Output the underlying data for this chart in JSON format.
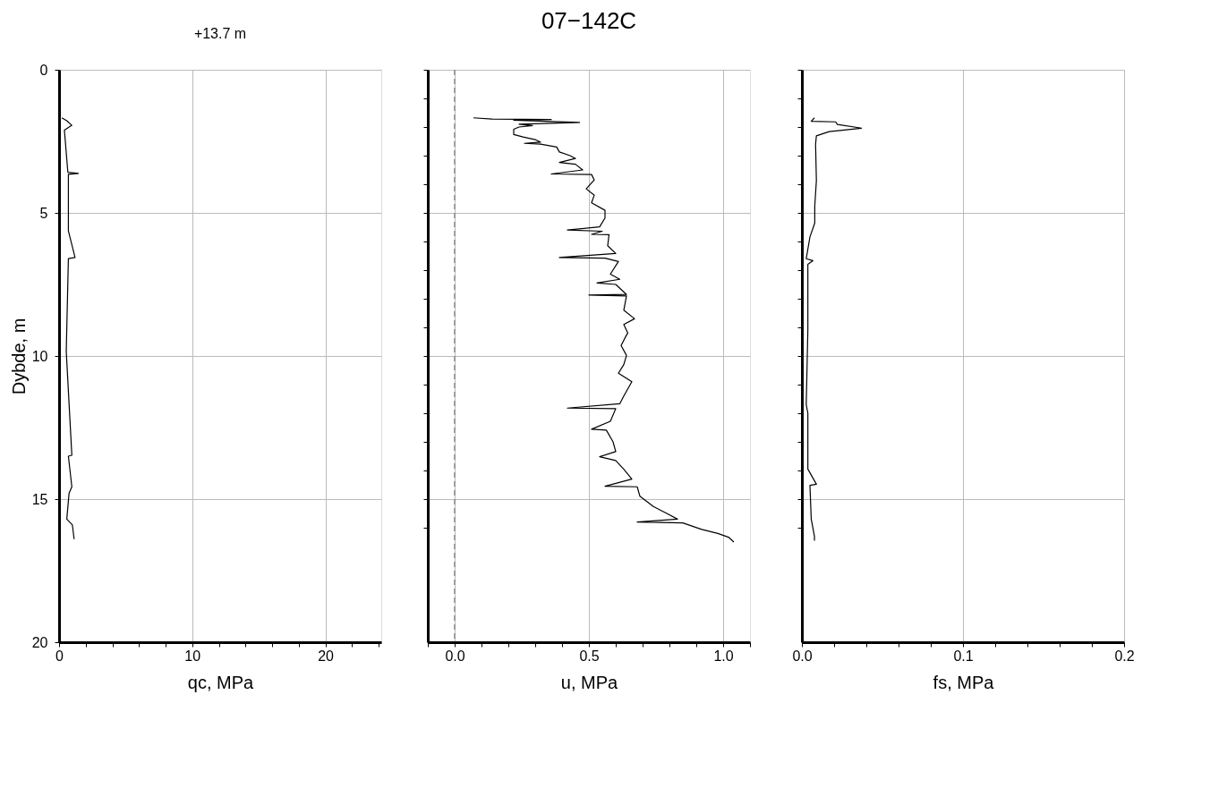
{
  "chart_data": [
    {
      "type": "line",
      "xlabel": "qc, MPa",
      "ylabel": "Dybde, m",
      "grid": true,
      "line_style": "solid",
      "annotations": [
        "+13.7 m"
      ],
      "xlim": [
        0,
        24.2
      ],
      "xticks": [
        0,
        {
          "value": 2,
          "label": null
        },
        {
          "value": 4,
          "label": null
        },
        {
          "value": 6,
          "label": null
        },
        {
          "value": 8,
          "label": null
        },
        10,
        {
          "value": 12,
          "label": null
        },
        {
          "value": 14,
          "label": null
        },
        {
          "value": 16,
          "label": null
        },
        {
          "value": 18,
          "label": null
        },
        20,
        {
          "value": 22,
          "label": null
        },
        {
          "value": 24,
          "label": null
        }
      ],
      "ylim": [
        20,
        0
      ],
      "yticks": [
        0,
        5,
        10,
        15,
        20
      ],
      "series": [
        {
          "color": "#000000",
          "x": [
            0.21,
            0.58,
            0.96,
            0.4,
            0.66,
            1.45,
            0.7,
            0.7,
            1.2,
            0.7,
            0.54,
            0.96,
            0.7,
            0.96,
            0.75,
            0.58,
            1.0,
            1.13
          ],
          "values": [
            1.68,
            1.78,
            1.94,
            2.11,
            3.58,
            3.62,
            3.65,
            5.63,
            6.56,
            6.6,
            9.84,
            13.47,
            13.5,
            14.57,
            14.8,
            15.7,
            15.9,
            16.4
          ]
        }
      ]
    },
    {
      "type": "line",
      "title": "07−142C",
      "xlabel": "u, MPa",
      "grid": true,
      "tick_labels": "x",
      "line_style": "solid",
      "xlim": [
        -0.1,
        1.1
      ],
      "xticks": [
        {
          "value": -0.1,
          "label": null
        },
        {
          "value": 0,
          "label": "0.0"
        },
        {
          "value": 0.1,
          "label": null
        },
        {
          "value": 0.2,
          "label": null
        },
        {
          "value": 0.3,
          "label": null
        },
        {
          "value": 0.4,
          "label": null
        },
        0.5,
        {
          "value": 0.6,
          "label": null
        },
        {
          "value": 0.7,
          "label": null
        },
        {
          "value": 0.8,
          "label": null
        },
        {
          "value": 0.9,
          "label": null
        },
        {
          "value": 1.0,
          "label": "1.0"
        },
        {
          "value": 1.1,
          "label": null
        }
      ],
      "ylim": [
        20,
        0
      ],
      "yticks": [
        0,
        {
          "value": 1,
          "label": null
        },
        {
          "value": 2,
          "label": null
        },
        {
          "value": 3,
          "label": null
        },
        {
          "value": 4,
          "label": null
        },
        5,
        {
          "value": 6,
          "label": null
        },
        {
          "value": 7,
          "label": null
        },
        {
          "value": 8,
          "label": null
        },
        {
          "value": 9,
          "label": null
        },
        10,
        {
          "value": 11,
          "label": null
        },
        {
          "value": 12,
          "label": null
        },
        {
          "value": 13,
          "label": null
        },
        {
          "value": 14,
          "label": null
        },
        15,
        {
          "value": 16,
          "label": null
        }
      ],
      "ref_lines": [
        {
          "axis": "x",
          "value": 0,
          "color": "#888888",
          "line_style": "dashed"
        }
      ],
      "series": [
        {
          "color": "#000000",
          "x": [
            0.07,
            0.14,
            0.36,
            0.22,
            0.465,
            0.24,
            0.29,
            0.24,
            0.22,
            0.22,
            0.255,
            0.3,
            0.32,
            0.26,
            0.32,
            0.38,
            0.39,
            0.43,
            0.45,
            0.39,
            0.45,
            0.477,
            0.36,
            0.51,
            0.52,
            0.49,
            0.52,
            0.51,
            0.56,
            0.56,
            0.54,
            0.42,
            0.55,
            0.51,
            0.575,
            0.57,
            0.6,
            0.39,
            0.56,
            0.61,
            0.58,
            0.615,
            0.53,
            0.6,
            0.64,
            0.5,
            0.64,
            0.63,
            0.67,
            0.63,
            0.645,
            0.64,
            0.62,
            0.64,
            0.63,
            0.61,
            0.66,
            0.63,
            0.615,
            0.42,
            0.6,
            0.58,
            0.51,
            0.565,
            0.59,
            0.6,
            0.54,
            0.6,
            0.63,
            0.66,
            0.56,
            0.68,
            0.69,
            0.74,
            0.79,
            0.83,
            0.68,
            0.85,
            0.92,
            0.98,
            1.02,
            1.04
          ],
          "values": [
            1.68,
            1.72,
            1.74,
            1.76,
            1.84,
            1.9,
            1.95,
            2.0,
            2.08,
            2.26,
            2.35,
            2.44,
            2.53,
            2.57,
            2.6,
            2.7,
            2.87,
            3.0,
            3.1,
            3.24,
            3.3,
            3.5,
            3.64,
            3.66,
            3.85,
            4.16,
            4.38,
            4.65,
            4.91,
            5.18,
            5.49,
            5.6,
            5.64,
            5.75,
            5.76,
            6.15,
            6.42,
            6.56,
            6.58,
            6.7,
            7.14,
            7.32,
            7.45,
            7.5,
            7.85,
            7.87,
            7.9,
            8.4,
            8.7,
            8.9,
            9.2,
            9.27,
            9.63,
            9.98,
            10.3,
            10.6,
            10.9,
            11.4,
            11.67,
            11.82,
            11.84,
            12.28,
            12.56,
            12.59,
            13.0,
            13.34,
            13.52,
            13.65,
            13.96,
            14.3,
            14.55,
            14.57,
            14.9,
            15.26,
            15.5,
            15.7,
            15.8,
            15.83,
            16.06,
            16.2,
            16.33,
            16.5
          ]
        }
      ]
    },
    {
      "type": "line",
      "xlabel": "fs, MPa",
      "grid": true,
      "tick_labels": "x",
      "line_style": "solid",
      "xlim": [
        0,
        0.2
      ],
      "xticks": [
        {
          "value": 0,
          "label": "0.0"
        },
        {
          "value": 0.02,
          "label": null
        },
        {
          "value": 0.04,
          "label": null
        },
        {
          "value": 0.06,
          "label": null
        },
        {
          "value": 0.08,
          "label": null
        },
        0.1,
        {
          "value": 0.12,
          "label": null
        },
        {
          "value": 0.14,
          "label": null
        },
        {
          "value": 0.16,
          "label": null
        },
        {
          "value": 0.18,
          "label": null
        },
        0.2
      ],
      "ylim": [
        20,
        0
      ],
      "yticks": [
        0,
        {
          "value": 1,
          "label": null
        },
        {
          "value": 2,
          "label": null
        },
        {
          "value": 3,
          "label": null
        },
        {
          "value": 4,
          "label": null
        },
        5,
        {
          "value": 6,
          "label": null
        },
        {
          "value": 7,
          "label": null
        },
        {
          "value": 8,
          "label": null
        },
        {
          "value": 9,
          "label": null
        },
        10,
        {
          "value": 11,
          "label": null
        },
        {
          "value": 12,
          "label": null
        },
        {
          "value": 13,
          "label": null
        },
        {
          "value": 14,
          "label": null
        },
        15,
        {
          "value": 16,
          "label": null
        }
      ],
      "series": [
        {
          "color": "#000000",
          "x": [
            0.0078,
            0.0058,
            0.021,
            0.022,
            0.037,
            0.017,
            0.009,
            0.0085,
            0.009,
            0.008,
            0.008,
            0.005,
            0.0027,
            0.0068,
            0.0037,
            0.0037,
            0.0027,
            0.0037,
            0.0037,
            0.009,
            0.005,
            0.0058,
            0.0078,
            0.0078
          ],
          "values": [
            1.68,
            1.8,
            1.82,
            1.91,
            2.04,
            2.16,
            2.31,
            2.6,
            3.87,
            4.76,
            5.35,
            5.84,
            6.6,
            6.67,
            6.8,
            9.1,
            11.7,
            12.0,
            13.95,
            14.48,
            14.52,
            15.7,
            16.3,
            16.45
          ]
        }
      ]
    }
  ]
}
